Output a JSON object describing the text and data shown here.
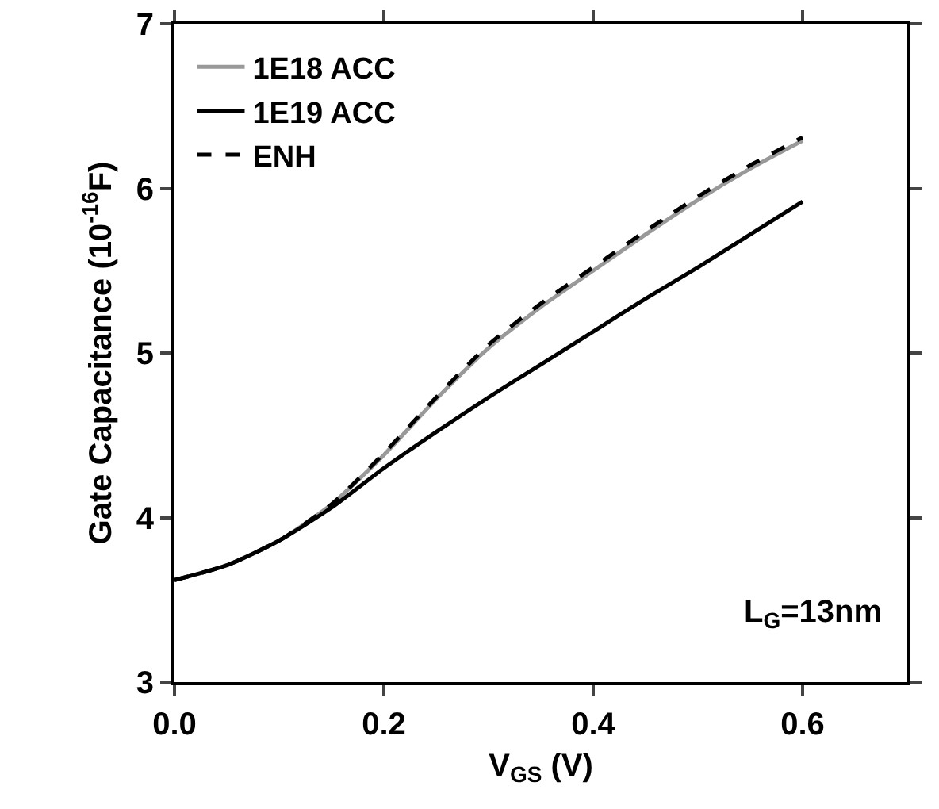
{
  "chart_data": {
    "type": "line",
    "xlabel": "V$_{GS}$ (V)",
    "ylabel": "Gate Capacitance (10$^{-16}$F)",
    "x": [
      0,
      0.05,
      0.1,
      0.15,
      0.2,
      0.25,
      0.3,
      0.35,
      0.4,
      0.45,
      0.5,
      0.55,
      0.6
    ],
    "series": [
      {
        "name": "1E18 ACC",
        "color": "#999999",
        "line_style": "solid",
        "values": [
          3.62,
          3.71,
          3.86,
          4.08,
          4.38,
          4.72,
          5.03,
          5.28,
          5.5,
          5.72,
          5.93,
          6.12,
          6.29
        ]
      },
      {
        "name": "1E19 ACC",
        "color": "#000000",
        "line_style": "solid",
        "values": [
          3.62,
          3.71,
          3.86,
          4.06,
          4.3,
          4.52,
          4.73,
          4.93,
          5.13,
          5.33,
          5.52,
          5.72,
          5.92
        ]
      },
      {
        "name": "ENH",
        "color": "#000000",
        "line_style": "dashed",
        "values": [
          3.62,
          3.71,
          3.86,
          4.08,
          4.39,
          4.73,
          5.05,
          5.3,
          5.52,
          5.74,
          5.95,
          6.14,
          6.31
        ]
      }
    ],
    "xlim": [
      0,
      0.7
    ],
    "xticks": [
      {
        "value": 0,
        "label": "0.0"
      },
      {
        "value": 0.2,
        "label": "0.2"
      },
      {
        "value": 0.4,
        "label": "0.4"
      },
      {
        "value": 0.6,
        "label": "0.6"
      }
    ],
    "ylim": [
      3,
      7
    ],
    "yticks": [
      3,
      4,
      5,
      6,
      7
    ],
    "grid": false,
    "legend": "top left",
    "marker": "none",
    "annotations": [
      "L$_{G}$=13nm"
    ]
  }
}
